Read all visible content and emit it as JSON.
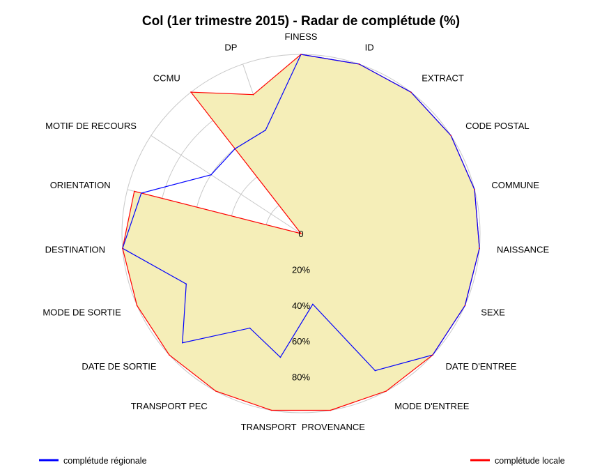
{
  "chart_data": {
    "type": "radar",
    "title": "Col (1er trimestre 2015) - Radar de complétude (%)",
    "rlim": [
      0,
      100
    ],
    "ticks": [
      {
        "value": 0,
        "label": "0"
      },
      {
        "value": 20,
        "label": "20%"
      },
      {
        "value": 40,
        "label": "40%"
      },
      {
        "value": 60,
        "label": "60%"
      },
      {
        "value": 80,
        "label": "80%"
      },
      {
        "value": 100,
        "label": ""
      }
    ],
    "axes": [
      "FINESS",
      "ID",
      "EXTRACT",
      "CODE POSTAL",
      "COMMUNE",
      "NAISSANCE",
      "SEXE",
      "DATE D'ENTREE",
      "MODE D'ENTREE",
      "PROVENANCE",
      "TRANSPORT",
      "TRANSPORT PEC",
      "DATE DE SORTIE",
      "MODE DE SORTIE",
      "DESTINATION",
      "ORIENTATION",
      "MOTIF DE RECOURS",
      "CCMU",
      "DP"
    ],
    "series": [
      {
        "name": "complétude régionale",
        "color": "#0000ff",
        "values": [
          100,
          100,
          100,
          100,
          100,
          100,
          100,
          100,
          87,
          40,
          70,
          60,
          90,
          70,
          100,
          92,
          60,
          60,
          61
        ]
      },
      {
        "name": "complétude locale",
        "color": "#ff0000",
        "fill": "#f5eeb8",
        "values": [
          100,
          100,
          100,
          100,
          100,
          100,
          100,
          100,
          100,
          100,
          100,
          100,
          100,
          100,
          100,
          96,
          0,
          100,
          82
        ]
      }
    ],
    "legend_placement": "bottom",
    "grid": true
  }
}
